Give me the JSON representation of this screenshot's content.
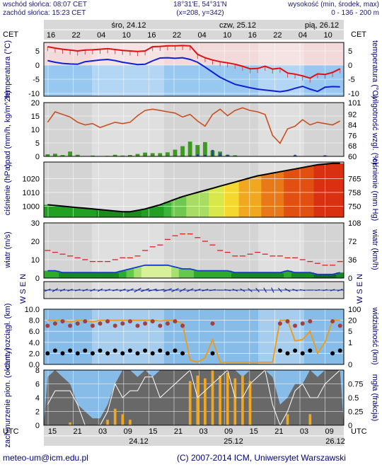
{
  "header": {
    "sunrise": "wschód słońca: 08:07 CET",
    "sunset": "zachód słońca: 15:23 CET",
    "coords": "18°31'E, 54°31'N",
    "grid": "(x=208, y=342)",
    "elev_title": "wysokość (min, środek, max)",
    "elev_values": "0 - 136 - 200 m"
  },
  "top_axis": {
    "tz_left": "CET",
    "tz_right": "CET",
    "dates": [
      "śro, 24.12",
      "czw, 25.12",
      "pią, 26.12"
    ],
    "hours": [
      "16",
      "22",
      "04",
      "10",
      "16",
      "22",
      "04",
      "10",
      "16",
      "22",
      "04",
      "10"
    ]
  },
  "bottom_axis": {
    "tz_left": "UTC",
    "tz_right": "UTC",
    "hours": [
      "15",
      "21",
      "03",
      "09",
      "15",
      "21",
      "03",
      "09",
      "15",
      "21",
      "03",
      "09"
    ],
    "dates": [
      "24.12",
      "25.12",
      "26.12"
    ]
  },
  "footer": {
    "email": "meteo-um@icm.edu.pl",
    "copyright": "(C) 2007-2014 ICM, Uniwersytet Warszawski"
  },
  "chart_data": [
    {
      "type": "line",
      "ylabel_left": "temperatura (°C)",
      "ylabel_right": "temperatura (°C)",
      "ylim": [
        -11,
        8
      ],
      "yticks": [
        5,
        0,
        -5,
        -10
      ],
      "colors": {
        "temperature": "#e01010",
        "dew_point": "#1020d0",
        "minmax": "#d05060",
        "fill": "#98c8f0"
      },
      "series": [
        {
          "values": [
            6.5,
            6.0,
            5.6,
            5.3,
            5.0,
            5.3,
            5.4,
            5.6,
            5.8,
            5.5,
            5.2,
            5.0,
            4.8,
            5.0,
            6.5,
            6.6,
            6.8,
            6.8,
            6.9,
            6.8,
            3.8,
            2.6,
            1.8,
            1.2,
            0.8,
            0.3,
            -0.4,
            -1.3,
            -1.2,
            -0.4,
            -1.4,
            -1.1,
            -2.8,
            -3.2,
            -3.8,
            -4.6,
            -3.1,
            -3.3,
            -2.6,
            -1.3
          ]
        },
        {
          "values": [
            1.6,
            1.0,
            0.6,
            0.4,
            0.3,
            1.2,
            1.5,
            1.8,
            2.0,
            1.6,
            1.0,
            0.6,
            0.2,
            0.3,
            1.5,
            2.5,
            2.6,
            2.4,
            2.6,
            2.0,
            1.0,
            -0.7,
            -2.5,
            -4.3,
            -5.6,
            -6.8,
            -7.4,
            -8.0,
            -8.5,
            -8.8,
            -9.1,
            -9.4,
            -9.0,
            -8.2,
            -7.5,
            -8.5,
            -9.3,
            -7.8,
            -7.6,
            -7.7
          ]
        }
      ]
    },
    {
      "type": "bar",
      "ylabel_left": "opad (mm/h, kg/m^2h)",
      "ylabel_right": "wilgotność wzgl. (%)",
      "ylim_left": [
        0,
        20
      ],
      "ylim_right": [
        60,
        101
      ],
      "yticks_left": [
        20,
        15,
        10,
        5,
        0
      ],
      "yticks_right": [
        101,
        92,
        84,
        76,
        68,
        60
      ],
      "colors": {
        "rain": "#3c9a20",
        "snow": "#2840b0",
        "humidity": "#c85020"
      },
      "series": [
        {
          "values": [
            0.8,
            1.0,
            0.5,
            1.8,
            0.6,
            0.0,
            0.3,
            0.0,
            0.2,
            0.6,
            0.3,
            0.5,
            0.9,
            1.4,
            1.2,
            1.2,
            1.5,
            2.5,
            3.8,
            5.5,
            4.2,
            5.3,
            2.2,
            1.8,
            0.6,
            0.4,
            0.0,
            0.0,
            0.1,
            0.0,
            0.0,
            0.0,
            0.0,
            0.3,
            0.0,
            0.0,
            0.0,
            0.3,
            0.0,
            0.0
          ]
        },
        {
          "values": [
            0.0,
            0.0,
            0.0,
            0.0,
            0.0,
            0.0,
            0.0,
            0.0,
            0.0,
            0.0,
            0.0,
            0.0,
            0.0,
            0.0,
            0.0,
            0.0,
            0.0,
            0.0,
            0.0,
            0.3,
            0.8,
            0.6,
            2.4,
            1.2,
            0.6,
            0.2,
            0.0,
            0.0,
            0.0,
            0.0,
            0.0,
            0.0,
            0.0,
            0.6,
            0.0,
            0.0,
            0.0,
            0.4,
            0.0,
            0.0
          ]
        },
        {
          "values": [
            86,
            94,
            92,
            90,
            86,
            84,
            85,
            82,
            84,
            86,
            85,
            86,
            91,
            95,
            96,
            95,
            94,
            93,
            90,
            92,
            87,
            83,
            92,
            96,
            91,
            95,
            97,
            95,
            94,
            92,
            76,
            70,
            81,
            83,
            88,
            84,
            86,
            85,
            84,
            87
          ]
        }
      ]
    },
    {
      "type": "area",
      "ylabel_left": "ciśnienie (hPa)",
      "ylabel_right": "ciśnienie (mm Hg)",
      "ylim_left": [
        992,
        1032
      ],
      "yticks_left": [
        1020,
        1010,
        1000
      ],
      "yticks_right": [
        765,
        758,
        750
      ],
      "values": [
        1001,
        1000.5,
        1000,
        999.5,
        999,
        998.5,
        998,
        997.5,
        997,
        996.5,
        996,
        996,
        997,
        998,
        999.5,
        1001,
        1003,
        1005,
        1007,
        1008.5,
        1010,
        1011.5,
        1013,
        1014.5,
        1016,
        1017.5,
        1019,
        1020.5,
        1022,
        1023,
        1024,
        1025,
        1026,
        1027,
        1028,
        1029,
        1030,
        1030.5,
        1031,
        1031
      ]
    },
    {
      "type": "bar",
      "ylabel_left": "wiatr (m/s)",
      "ylabel_right": "wiatr (km/h)",
      "ylim_left": [
        0,
        30
      ],
      "yticks_left": [
        30,
        20,
        10,
        0
      ],
      "yticks_right": [
        108,
        72,
        36,
        0
      ],
      "colors": {
        "gusts": "#e02020",
        "speed": "#1838c8"
      },
      "series": [
        {
          "values": [
            15,
            14,
            13,
            12,
            11,
            10,
            9,
            9,
            9,
            10,
            11,
            11,
            12,
            15,
            17,
            18,
            21,
            23,
            24,
            24,
            22,
            20,
            18,
            15,
            14,
            12,
            12,
            13,
            14,
            13,
            12,
            12,
            11,
            11,
            10,
            9,
            8,
            7,
            7,
            9
          ]
        },
        {
          "values": [
            4,
            4,
            3,
            3,
            3,
            3,
            3,
            3,
            3,
            3,
            4,
            5,
            6,
            7,
            7,
            7,
            7,
            6,
            5,
            5,
            4,
            4,
            4,
            4,
            4,
            3,
            3,
            3,
            3,
            3,
            3,
            3,
            4,
            3,
            3,
            3,
            2,
            2,
            2,
            3
          ]
        }
      ]
    },
    {
      "type": "line",
      "ylabel_left": "chm. rozciągł. (km)",
      "ylabel_right": "widzialność (km)",
      "ylim_left": [
        0,
        10
      ],
      "yticks_left": [
        10.0,
        8.0,
        6.0,
        4.0,
        2.0,
        0.0
      ],
      "yticks_right": [
        100,
        20,
        5,
        1,
        0
      ],
      "colors": {
        "visibility": "#f09a10",
        "cloud_top": "#a04040",
        "cloud_base": "#000000"
      },
      "values": [
        20,
        20,
        20,
        18,
        20,
        20,
        18,
        20,
        20,
        20,
        20,
        20,
        20,
        20,
        20,
        19,
        20,
        20,
        15,
        0.2,
        0.1,
        0.3,
        2,
        0.1,
        0.1,
        0.1,
        0.1,
        0.1,
        0.1,
        0.1,
        0.1,
        20,
        20,
        1.5,
        2,
        5,
        0.5,
        1,
        20,
        20
      ]
    },
    {
      "type": "bar",
      "ylabel_left": "zachmurzenie pion. (oktanty)",
      "ylabel_right": "mgła (frakcja)",
      "ylim_left": [
        0,
        8
      ],
      "yticks_left": [
        8,
        6,
        4,
        2,
        0
      ],
      "yticks_right": [
        0.75,
        0.5,
        0.25,
        0
      ],
      "colors": {
        "low_cloud": "#686868",
        "fog": "#f0a820"
      },
      "series": [
        {
          "values": [
            7,
            8,
            7,
            6,
            3,
            2,
            1,
            1,
            3,
            6,
            8,
            8,
            7,
            8,
            7,
            8,
            8,
            8,
            8,
            8,
            8,
            8,
            8,
            8,
            8,
            8,
            7,
            8,
            8,
            8,
            7,
            3,
            4,
            6,
            6,
            8,
            7,
            8,
            8,
            8
          ]
        },
        {
          "values": [
            0,
            0,
            0,
            0.05,
            0,
            0,
            0,
            0,
            0.1,
            0.3,
            0.2,
            0.1,
            0,
            0,
            0,
            0,
            0,
            0,
            0,
            0.8,
            0.9,
            0.85,
            1.0,
            0.9,
            0.95,
            0.85,
            0.9,
            0.8,
            0,
            0,
            0,
            0,
            0.2,
            0,
            0,
            0.2,
            0,
            0,
            0,
            0
          ]
        }
      ]
    },
    {
      "type": "line",
      "ylabel_left": "W S E N",
      "ylabel_right": "W S E N",
      "values": [
        250,
        240,
        245,
        250,
        255,
        250,
        245,
        240,
        250,
        255,
        250,
        245,
        240,
        250,
        255,
        260,
        250,
        245,
        240,
        245,
        250,
        255,
        260,
        270,
        280,
        290,
        300,
        310,
        320,
        330,
        335,
        320,
        300,
        290,
        280,
        270,
        260,
        255,
        250,
        250
      ]
    }
  ]
}
